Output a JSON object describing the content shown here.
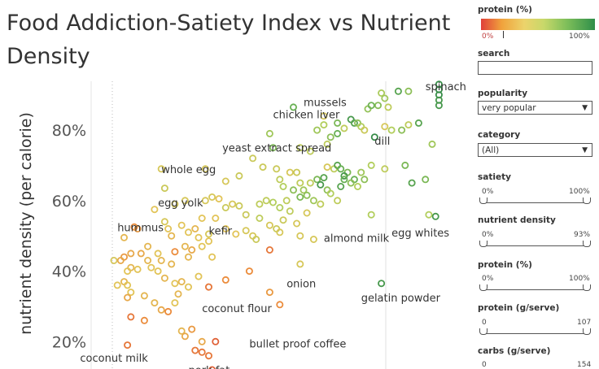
{
  "title": "Food Addiction-Satiety Index vs Nutrient Density",
  "chart_data": {
    "type": "scatter",
    "ylabel": "nutrient density (per calorie)",
    "yticks": [
      "20%",
      "40%",
      "60%",
      "80%"
    ],
    "ylim": [
      0.12,
      0.95
    ],
    "xlim": [
      0,
      1
    ],
    "labels": [
      {
        "text": "spinach",
        "x": 0.92,
        "y": 0.925
      },
      {
        "text": "mussels",
        "x": 0.56,
        "y": 0.88
      },
      {
        "text": "chicken liver",
        "x": 0.47,
        "y": 0.845
      },
      {
        "text": "dill",
        "x": 0.77,
        "y": 0.77
      },
      {
        "text": "yeast extract spread",
        "x": 0.32,
        "y": 0.75
      },
      {
        "text": "whole egg",
        "x": 0.14,
        "y": 0.69
      },
      {
        "text": "egg yolk",
        "x": 0.13,
        "y": 0.595
      },
      {
        "text": "hummus",
        "x": 0.01,
        "y": 0.525
      },
      {
        "text": "kefir",
        "x": 0.28,
        "y": 0.515
      },
      {
        "text": "almond milk",
        "x": 0.62,
        "y": 0.495
      },
      {
        "text": "egg whites",
        "x": 0.82,
        "y": 0.51
      },
      {
        "text": "onion",
        "x": 0.51,
        "y": 0.365
      },
      {
        "text": "gelatin powder",
        "x": 0.73,
        "y": 0.325
      },
      {
        "text": "coconut flour",
        "x": 0.26,
        "y": 0.295
      },
      {
        "text": "bullet proof coffee",
        "x": 0.4,
        "y": 0.195
      },
      {
        "text": "coconut milk",
        "x": -0.1,
        "y": 0.155
      },
      {
        "text": "pork fat",
        "x": 0.22,
        "y": 0.12
      }
    ],
    "points": [
      [
        0.96,
        0.93,
        0.95
      ],
      [
        0.96,
        0.915,
        0.95
      ],
      [
        0.96,
        0.9,
        0.95
      ],
      [
        0.96,
        0.885,
        0.9
      ],
      [
        0.96,
        0.87,
        0.9
      ],
      [
        0.53,
        0.865,
        0.8
      ],
      [
        0.84,
        0.91,
        0.85
      ],
      [
        0.87,
        0.91,
        0.7
      ],
      [
        0.79,
        0.905,
        0.62
      ],
      [
        0.8,
        0.89,
        0.65
      ],
      [
        0.78,
        0.87,
        0.72
      ],
      [
        0.81,
        0.865,
        0.55
      ],
      [
        0.75,
        0.86,
        0.68
      ],
      [
        0.76,
        0.87,
        0.78
      ],
      [
        0.62,
        0.84,
        0.45
      ],
      [
        0.66,
        0.82,
        0.75
      ],
      [
        0.62,
        0.815,
        0.6
      ],
      [
        0.7,
        0.83,
        0.9
      ],
      [
        0.71,
        0.82,
        0.85
      ],
      [
        0.72,
        0.82,
        0.7
      ],
      [
        0.73,
        0.81,
        0.6
      ],
      [
        0.68,
        0.805,
        0.55
      ],
      [
        0.74,
        0.8,
        0.5
      ],
      [
        0.66,
        0.79,
        0.8
      ],
      [
        0.64,
        0.78,
        0.7
      ],
      [
        0.6,
        0.8,
        0.65
      ],
      [
        0.8,
        0.81,
        0.45
      ],
      [
        0.87,
        0.815,
        0.55
      ],
      [
        0.85,
        0.8,
        0.7
      ],
      [
        0.82,
        0.8,
        0.6
      ],
      [
        0.9,
        0.82,
        0.85
      ],
      [
        0.77,
        0.78,
        0.95
      ],
      [
        0.63,
        0.76,
        0.55
      ],
      [
        0.94,
        0.76,
        0.65
      ],
      [
        0.46,
        0.79,
        0.65
      ],
      [
        0.47,
        0.75,
        0.75
      ],
      [
        0.41,
        0.72,
        0.5
      ],
      [
        0.55,
        0.75,
        0.55
      ],
      [
        0.58,
        0.74,
        0.55
      ],
      [
        0.52,
        0.68,
        0.45
      ],
      [
        0.54,
        0.68,
        0.5
      ],
      [
        0.63,
        0.695,
        0.45
      ],
      [
        0.65,
        0.69,
        0.55
      ],
      [
        0.66,
        0.7,
        0.85
      ],
      [
        0.67,
        0.69,
        0.8
      ],
      [
        0.69,
        0.68,
        0.75
      ],
      [
        0.73,
        0.68,
        0.65
      ],
      [
        0.68,
        0.67,
        0.9
      ],
      [
        0.71,
        0.66,
        0.8
      ],
      [
        0.74,
        0.66,
        0.7
      ],
      [
        0.76,
        0.7,
        0.6
      ],
      [
        0.8,
        0.69,
        0.55
      ],
      [
        0.86,
        0.7,
        0.75
      ],
      [
        0.92,
        0.66,
        0.75
      ],
      [
        0.88,
        0.65,
        0.85
      ],
      [
        0.14,
        0.69,
        0.45
      ],
      [
        0.27,
        0.69,
        0.45
      ],
      [
        0.33,
        0.655,
        0.45
      ],
      [
        0.37,
        0.67,
        0.5
      ],
      [
        0.44,
        0.695,
        0.5
      ],
      [
        0.48,
        0.69,
        0.5
      ],
      [
        0.49,
        0.66,
        0.55
      ],
      [
        0.5,
        0.64,
        0.6
      ],
      [
        0.55,
        0.65,
        0.55
      ],
      [
        0.58,
        0.65,
        0.55
      ],
      [
        0.6,
        0.66,
        0.75
      ],
      [
        0.62,
        0.665,
        0.85
      ],
      [
        0.61,
        0.645,
        0.9
      ],
      [
        0.63,
        0.63,
        0.7
      ],
      [
        0.56,
        0.63,
        0.65
      ],
      [
        0.53,
        0.63,
        0.7
      ],
      [
        0.55,
        0.61,
        0.75
      ],
      [
        0.57,
        0.615,
        0.7
      ],
      [
        0.59,
        0.6,
        0.65
      ],
      [
        0.61,
        0.59,
        0.55
      ],
      [
        0.67,
        0.64,
        0.85
      ],
      [
        0.68,
        0.66,
        0.8
      ],
      [
        0.7,
        0.65,
        0.7
      ],
      [
        0.72,
        0.64,
        0.6
      ],
      [
        0.64,
        0.62,
        0.6
      ],
      [
        0.66,
        0.6,
        0.55
      ],
      [
        0.15,
        0.635,
        0.5
      ],
      [
        0.18,
        0.59,
        0.45
      ],
      [
        0.21,
        0.6,
        0.45
      ],
      [
        0.27,
        0.6,
        0.45
      ],
      [
        0.29,
        0.61,
        0.45
      ],
      [
        0.31,
        0.605,
        0.4
      ],
      [
        0.33,
        0.58,
        0.5
      ],
      [
        0.35,
        0.59,
        0.45
      ],
      [
        0.37,
        0.585,
        0.5
      ],
      [
        0.39,
        0.56,
        0.5
      ],
      [
        0.43,
        0.59,
        0.55
      ],
      [
        0.45,
        0.6,
        0.55
      ],
      [
        0.47,
        0.595,
        0.6
      ],
      [
        0.49,
        0.58,
        0.6
      ],
      [
        0.51,
        0.6,
        0.55
      ],
      [
        0.52,
        0.57,
        0.55
      ],
      [
        0.43,
        0.55,
        0.55
      ],
      [
        0.46,
        0.53,
        0.45
      ],
      [
        0.48,
        0.52,
        0.5
      ],
      [
        0.5,
        0.545,
        0.5
      ],
      [
        0.54,
        0.535,
        0.45
      ],
      [
        0.57,
        0.565,
        0.45
      ],
      [
        0.76,
        0.56,
        0.6
      ],
      [
        0.93,
        0.56,
        0.6
      ],
      [
        0.95,
        0.555,
        0.9
      ],
      [
        0.12,
        0.575,
        0.4
      ],
      [
        0.15,
        0.54,
        0.45
      ],
      [
        0.16,
        0.52,
        0.4
      ],
      [
        0.17,
        0.5,
        0.35
      ],
      [
        0.2,
        0.53,
        0.4
      ],
      [
        0.22,
        0.51,
        0.4
      ],
      [
        0.24,
        0.52,
        0.35
      ],
      [
        0.26,
        0.55,
        0.4
      ],
      [
        0.25,
        0.495,
        0.4
      ],
      [
        0.28,
        0.505,
        0.45
      ],
      [
        0.3,
        0.55,
        0.4
      ],
      [
        0.33,
        0.52,
        0.4
      ],
      [
        0.36,
        0.505,
        0.4
      ],
      [
        0.39,
        0.515,
        0.45
      ],
      [
        0.41,
        0.5,
        0.45
      ],
      [
        0.42,
        0.49,
        0.5
      ],
      [
        0.49,
        0.51,
        0.45
      ],
      [
        0.55,
        0.5,
        0.45
      ],
      [
        0.59,
        0.49,
        0.45
      ],
      [
        0.06,
        0.525,
        0.2
      ],
      [
        0.07,
        0.52,
        0.25
      ],
      [
        0.03,
        0.495,
        0.35
      ],
      [
        0.05,
        0.45,
        0.3
      ],
      [
        0.08,
        0.45,
        0.3
      ],
      [
        0.1,
        0.47,
        0.35
      ],
      [
        0.13,
        0.45,
        0.4
      ],
      [
        0.14,
        0.43,
        0.35
      ],
      [
        0.18,
        0.455,
        0.2
      ],
      [
        0.21,
        0.47,
        0.35
      ],
      [
        0.23,
        0.46,
        0.3
      ],
      [
        0.26,
        0.47,
        0.4
      ],
      [
        0.28,
        0.485,
        0.4
      ],
      [
        0.22,
        0.44,
        0.35
      ],
      [
        0.29,
        0.44,
        0.4
      ],
      [
        0.17,
        0.42,
        0.35
      ],
      [
        0.11,
        0.41,
        0.4
      ],
      [
        0.0,
        0.43,
        0.45
      ],
      [
        0.03,
        0.44,
        0.25
      ],
      [
        0.02,
        0.43,
        0.3
      ],
      [
        0.05,
        0.41,
        0.35
      ],
      [
        0.04,
        0.4,
        0.4
      ],
      [
        0.07,
        0.405,
        0.4
      ],
      [
        0.1,
        0.43,
        0.35
      ],
      [
        0.13,
        0.4,
        0.4
      ],
      [
        0.15,
        0.38,
        0.35
      ],
      [
        0.18,
        0.365,
        0.4
      ],
      [
        0.2,
        0.37,
        0.35
      ],
      [
        0.22,
        0.355,
        0.4
      ],
      [
        0.25,
        0.385,
        0.4
      ],
      [
        0.01,
        0.36,
        0.4
      ],
      [
        0.03,
        0.37,
        0.35
      ],
      [
        0.04,
        0.36,
        0.4
      ],
      [
        0.05,
        0.34,
        0.4
      ],
      [
        0.04,
        0.325,
        0.3
      ],
      [
        0.09,
        0.33,
        0.35
      ],
      [
        0.12,
        0.31,
        0.35
      ],
      [
        0.14,
        0.29,
        0.3
      ],
      [
        0.18,
        0.31,
        0.4
      ],
      [
        0.19,
        0.335,
        0.35
      ],
      [
        0.55,
        0.42,
        0.45
      ],
      [
        0.46,
        0.46,
        0.15
      ],
      [
        0.4,
        0.4,
        0.2
      ],
      [
        0.33,
        0.375,
        0.2
      ],
      [
        0.28,
        0.355,
        0.15
      ],
      [
        0.46,
        0.34,
        0.25
      ],
      [
        0.49,
        0.305,
        0.2
      ],
      [
        0.79,
        0.365,
        0.9
      ],
      [
        0.05,
        0.27,
        0.15
      ],
      [
        0.09,
        0.26,
        0.2
      ],
      [
        0.16,
        0.285,
        0.2
      ],
      [
        0.2,
        0.23,
        0.35
      ],
      [
        0.21,
        0.215,
        0.3
      ],
      [
        0.23,
        0.235,
        0.25
      ],
      [
        0.26,
        0.2,
        0.3
      ],
      [
        0.24,
        0.175,
        0.15
      ],
      [
        0.26,
        0.17,
        0.15
      ],
      [
        0.28,
        0.16,
        0.15
      ],
      [
        0.3,
        0.2,
        0.1
      ],
      [
        0.29,
        0.12,
        0.1
      ],
      [
        0.29,
        0.095,
        0.1
      ],
      [
        0.04,
        0.19,
        0.15
      ]
    ]
  },
  "filters": {
    "protein_pct_legend": {
      "label": "protein (%)",
      "min": "0%",
      "max": "100%"
    },
    "search": {
      "label": "search",
      "value": ""
    },
    "popularity": {
      "label": "popularity",
      "value": "very popular"
    },
    "category": {
      "label": "category",
      "value": "(All)"
    },
    "satiety": {
      "label": "satiety",
      "min": "0%",
      "max": "100%"
    },
    "nutrient_density": {
      "label": "nutrient density",
      "min": "0%",
      "max": "93%"
    },
    "protein_pct": {
      "label": "protein (%)",
      "min": "0%",
      "max": "100%"
    },
    "protein_g": {
      "label": "protein (g/serve)",
      "min": "0",
      "max": "107"
    },
    "carbs_g": {
      "label": "carbs (g/serve)",
      "min": "0",
      "max": "154"
    }
  }
}
